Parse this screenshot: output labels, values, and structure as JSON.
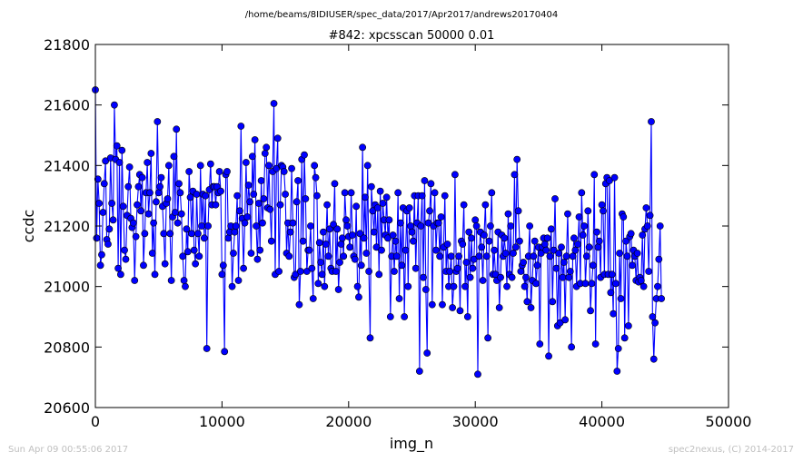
{
  "chart_data": {
    "type": "line",
    "supertitle": "/home/beams/8IDIUSER/spec_data/2017/Apr2017/andrews20170404",
    "title": "#842: xpcsscan 50000 0.01",
    "xlabel": "img_n",
    "ylabel": "ccdc",
    "xlim": [
      0,
      50000
    ],
    "ylim": [
      20600,
      21800
    ],
    "x_ticks": [
      0,
      10000,
      20000,
      30000,
      40000,
      50000
    ],
    "y_ticks": [
      20600,
      20800,
      21000,
      21200,
      21400,
      21600,
      21800
    ],
    "x_tick_labels": [
      "0",
      "10000",
      "20000",
      "30000",
      "40000",
      "50000"
    ],
    "y_tick_labels": [
      "20600",
      "20800",
      "21000",
      "21200",
      "21400",
      "21600",
      "21800"
    ],
    "grid": false,
    "series": [
      {
        "color": "#0000ff",
        "marker": "circle",
        "x_start": 0,
        "x_step": 100,
        "values": [
          21650,
          21160,
          21355,
          21275,
          21070,
          21105,
          21245,
          21340,
          21415,
          21155,
          21140,
          21190,
          21425,
          21275,
          21220,
          21600,
          21420,
          21465,
          21060,
          21410,
          21040,
          21450,
          21265,
          21120,
          21090,
          21235,
          21330,
          21395,
          21225,
          21195,
          21210,
          21020,
          21165,
          21270,
          21330,
          21370,
          21250,
          21360,
          21070,
          21175,
          21310,
          21410,
          21240,
          21310,
          21440,
          21110,
          21210,
          21040,
          21280,
          21545,
          21310,
          21330,
          21360,
          21265,
          21175,
          21075,
          21275,
          21290,
          21400,
          21175,
          21020,
          21230,
          21430,
          21245,
          21520,
          21210,
          21340,
          21310,
          21240,
          21100,
          21020,
          21000,
          21190,
          21115,
          21380,
          21295,
          21175,
          21315,
          21120,
          21075,
          21305,
          21175,
          21100,
          21400,
          21200,
          21305,
          21160,
          21300,
          20795,
          21200,
          21320,
          21405,
          21270,
          21330,
          21330,
          21270,
          21330,
          21310,
          21380,
          21315,
          21040,
          21070,
          20785,
          21370,
          21380,
          21160,
          21180,
          21200,
          21000,
          21110,
          21180,
          21200,
          21300,
          21020,
          21250,
          21530,
          21225,
          21060,
          21210,
          21410,
          21230,
          21335,
          21280,
          21110,
          21430,
          21305,
          21485,
          21200,
          21090,
          21275,
          21120,
          21350,
          21210,
          21290,
          21440,
          21460,
          21260,
          21400,
          21255,
          21150,
          21380,
          21605,
          21040,
          21390,
          21490,
          21050,
          21270,
          21400,
          21395,
          21380,
          21305,
          21110,
          21210,
          21100,
          21180,
          21390,
          21210,
          21030,
          21040,
          21280,
          21350,
          20940,
          21050,
          21420,
          21150,
          21435,
          21290,
          21050,
          21120,
          21120,
          21200,
          21060,
          20960,
          21400,
          21360,
          21300,
          21010,
          21145,
          21080,
          21040,
          21180,
          21000,
          21140,
          21270,
          21100,
          21190,
          21060,
          21050,
          21205,
          21340,
          21050,
          21190,
          20990,
          21080,
          21140,
          21160,
          21100,
          21310,
          21220,
          21200,
          21165,
          21130,
          21310,
          21170,
          21100,
          21090,
          21265,
          21000,
          20965,
          21175,
          21070,
          21460,
          21160,
          21295,
          21110,
          21400,
          21050,
          20830,
          21330,
          21250,
          21180,
          21270,
          21130,
          21260,
          21040,
          21315,
          21120,
          21275,
          21220,
          21170,
          21295,
          21160,
          21220,
          20900,
          21100,
          21170,
          21050,
          21150,
          21100,
          21310,
          20960,
          21210,
          21070,
          21260,
          20900,
          21120,
          21250,
          21000,
          21260,
          21200,
          21180,
          21150,
          21300,
          21060,
          21210,
          21300,
          20720,
          21200,
          21300,
          21030,
          21350,
          20990,
          20780,
          21210,
          21250,
          21340,
          20940,
          21200,
          21310,
          21120,
          21210,
          21210,
          21100,
          21230,
          20940,
          21130,
          21300,
          21050,
          21140,
          21000,
          21050,
          21100,
          20930,
          21000,
          21370,
          21050,
          21060,
          21100,
          20920,
          21150,
          21140,
          21270,
          21000,
          21080,
          20900,
          21180,
          21030,
          21160,
          21060,
          21090,
          21220,
          21200,
          20710,
          21100,
          21180,
          21130,
          21020,
          21170,
          21270,
          21100,
          20830,
          21150,
          21200,
          21310,
          21040,
          21120,
          21040,
          21020,
          21180,
          20930,
          21030,
          21170,
          21100,
          21160,
          21110,
          21000,
          21240,
          21040,
          21200,
          21030,
          21110,
          21370,
          21130,
          21420,
          21250,
          21150,
          21050,
          21070,
          21080,
          21000,
          21030,
          20950,
          21100,
          21200,
          20930,
          21020,
          21100,
          21150,
          21010,
          21070,
          21130,
          20810,
          21110,
          21130,
          21160,
          21140,
          21120,
          21160,
          20770,
          21100,
          21190,
          20950,
          21120,
          21290,
          21060,
          20870,
          21110,
          20880,
          21130,
          21030,
          21080,
          20890,
          21100,
          21240,
          21030,
          21050,
          20800,
          21100,
          21160,
          21120,
          21000,
          21140,
          21230,
          21010,
          21310,
          21170,
          21200,
          21010,
          21100,
          21250,
          21130,
          20920,
          21010,
          21070,
          21370,
          20810,
          21180,
          21130,
          21150,
          21030,
          21270,
          21250,
          21040,
          21340,
          21360,
          21040,
          21350,
          20980,
          21040,
          20910,
          21360,
          21010,
          20720,
          20795,
          21110,
          20960,
          21240,
          21230,
          20830,
          21150,
          21100,
          20870,
          21165,
          21175,
          21070,
          21120,
          21100,
          21020,
          21110,
          21015,
          21030,
          21020,
          21170,
          21000,
          21190,
          21260,
          21200,
          21050,
          21235,
          21545,
          20900,
          20760,
          20880,
          20960,
          21000,
          21090,
          21200,
          20960
        ]
      }
    ]
  },
  "footer": {
    "left": "Sun Apr 09 00:55:06 2017",
    "right": "spec2nexus, (C) 2014-2017"
  }
}
